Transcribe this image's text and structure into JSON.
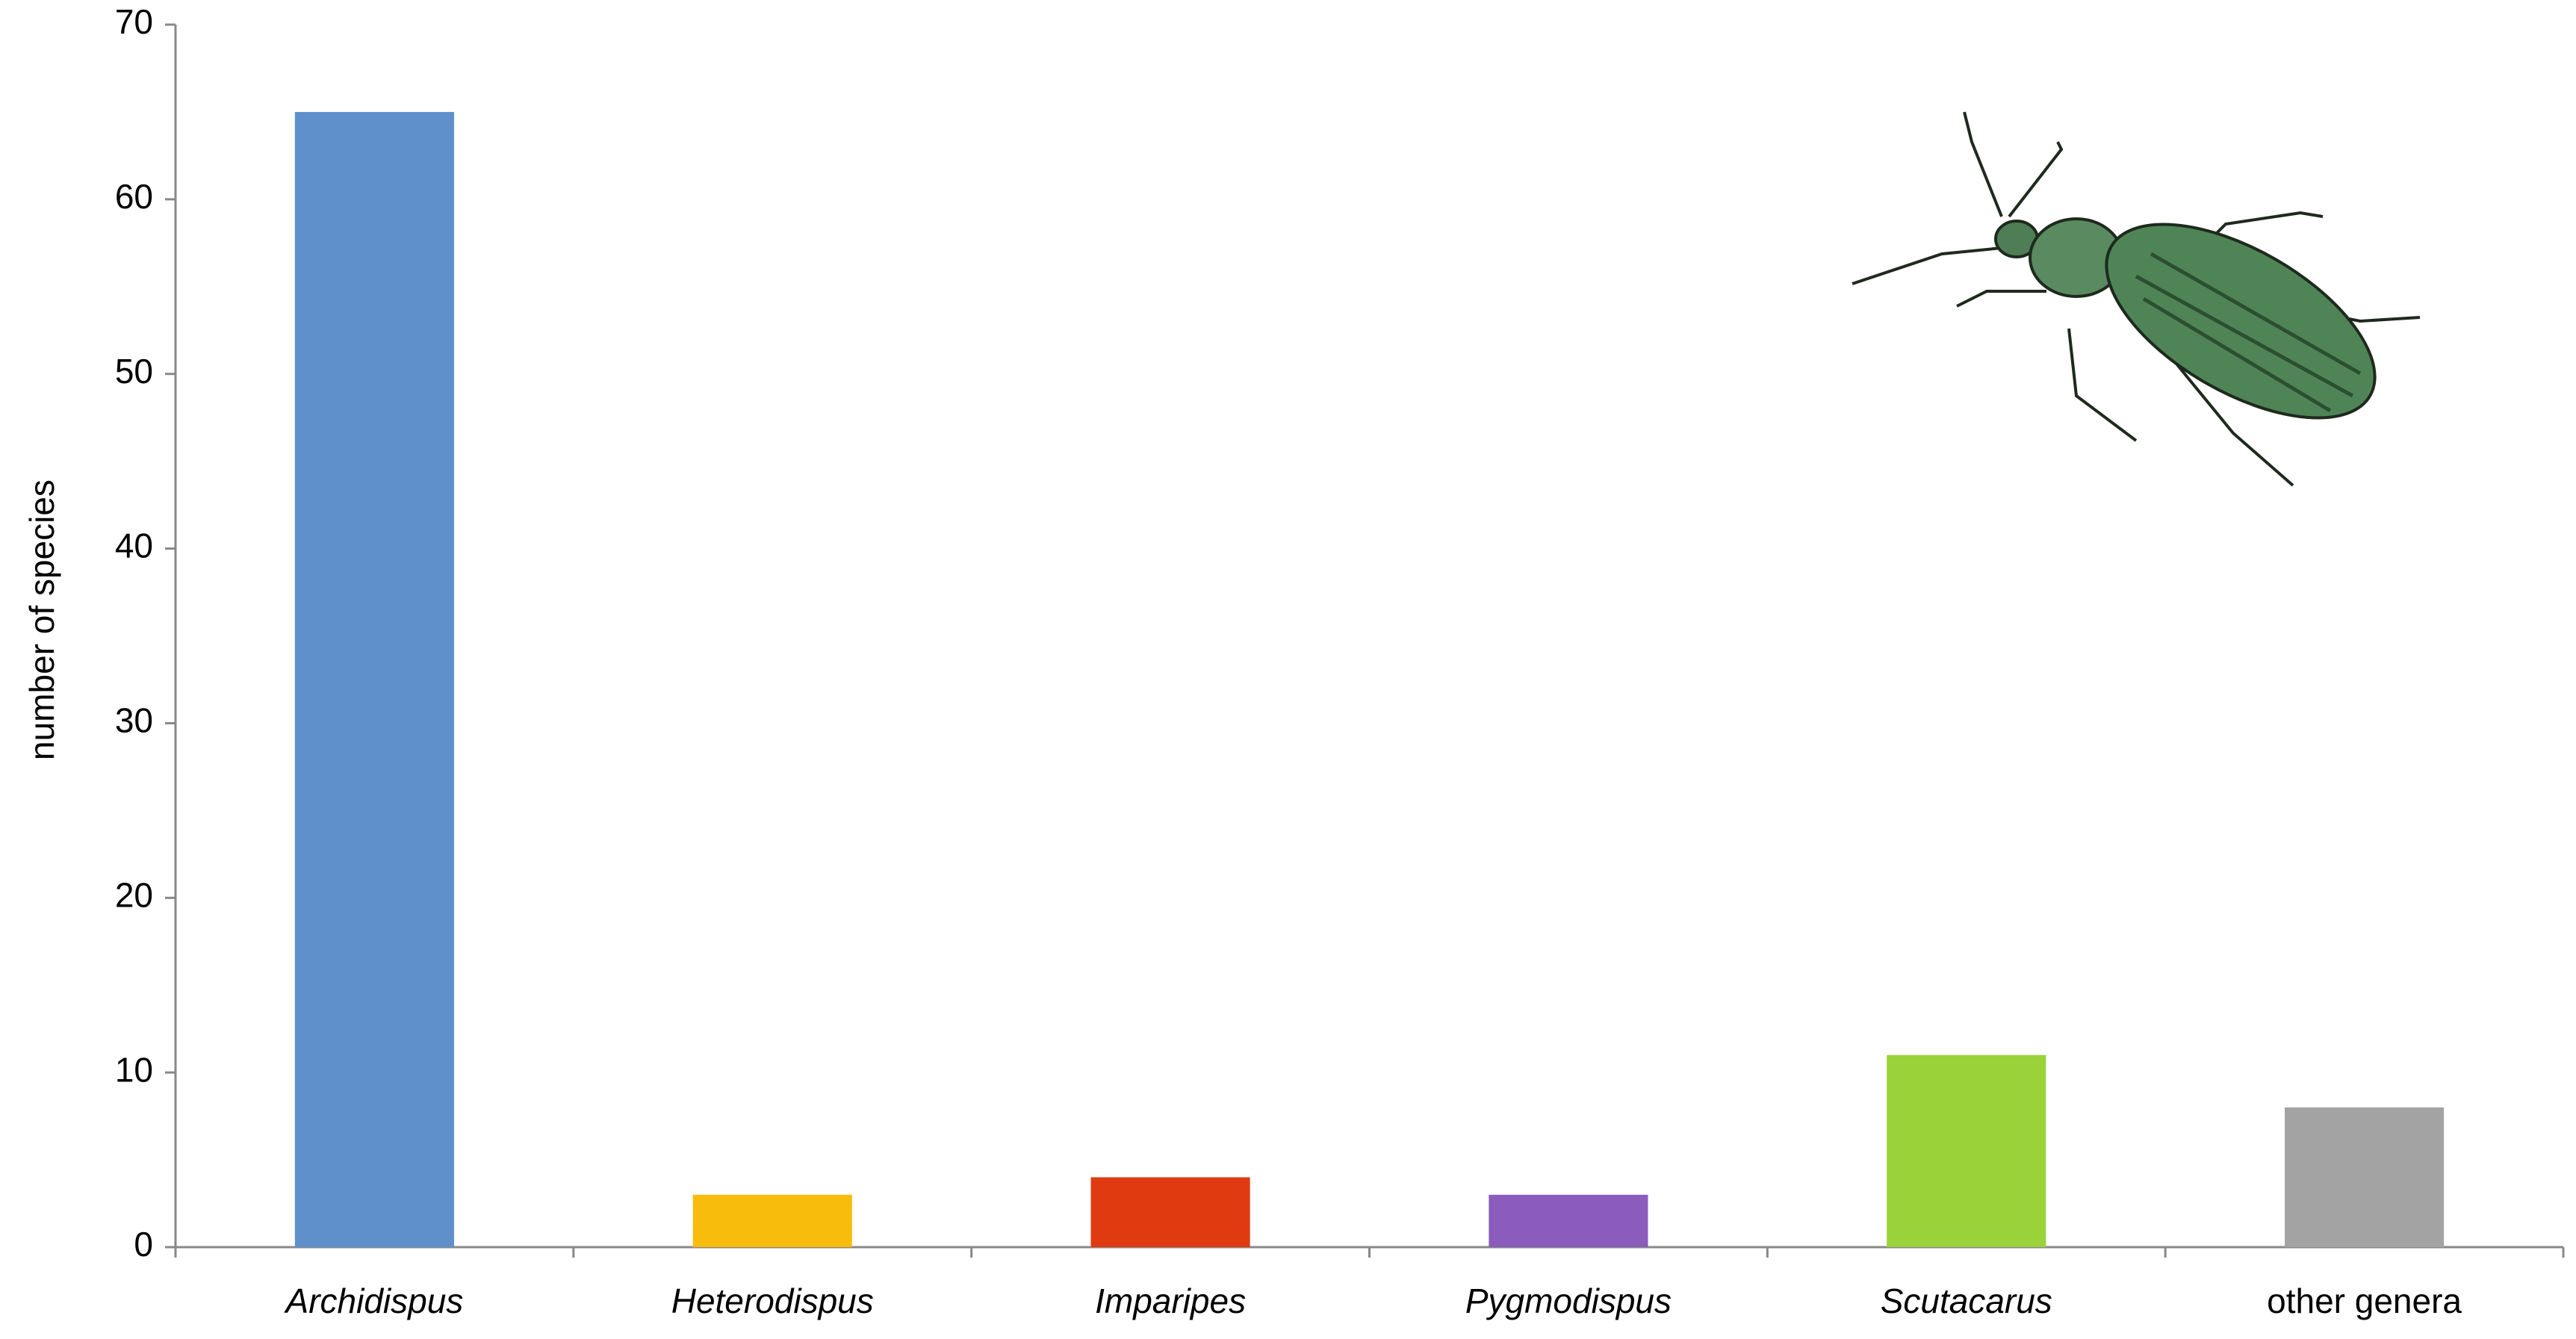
{
  "chart_data": {
    "type": "bar",
    "y_label": "number of species",
    "categories": [
      "Archidispus",
      "Heterodispus",
      "Imparipes",
      "Pygmodispus",
      "Scutacarus",
      "other genera"
    ],
    "values": [
      65,
      3,
      4,
      3,
      11,
      8
    ],
    "colors": [
      "#6090cb",
      "#f8bc0c",
      "#e03a10",
      "#8b5cbc",
      "#9ad23a",
      "#a3a3a3"
    ],
    "label_styles": [
      "italic",
      "italic",
      "italic",
      "italic",
      "italic",
      "normal"
    ],
    "ylim": [
      0,
      70
    ],
    "yticks": [
      0,
      10,
      20,
      30,
      40,
      50,
      60,
      70
    ],
    "grid": false
  }
}
